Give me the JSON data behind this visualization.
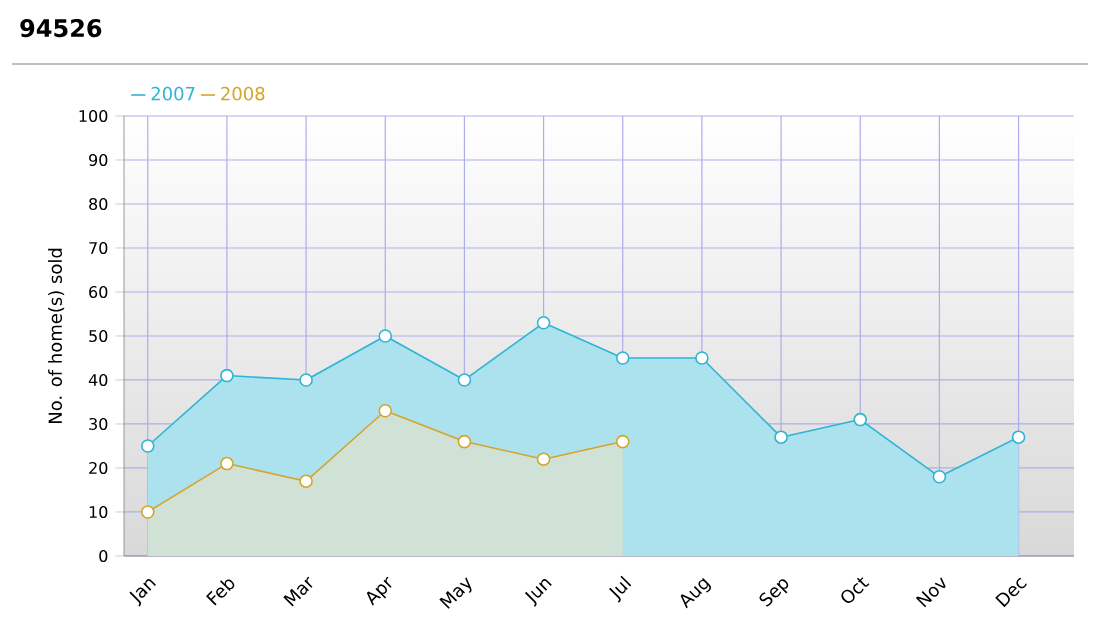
{
  "chart_data": {
    "type": "area",
    "title": "94526",
    "ylabel": "No. of home(s) sold",
    "categories": [
      "Jan",
      "Feb",
      "Mar",
      "Apr",
      "May",
      "Jun",
      "Jul",
      "Aug",
      "Sep",
      "Oct",
      "Nov",
      "Dec"
    ],
    "series": [
      {
        "name": "2007",
        "color": "#2fb4d4",
        "values": [
          25,
          41,
          40,
          50,
          40,
          53,
          45,
          45,
          27,
          31,
          18,
          27
        ]
      },
      {
        "name": "2008",
        "color": "#d4a52a",
        "values": [
          10,
          21,
          17,
          33,
          26,
          22,
          26,
          null,
          null,
          null,
          null,
          null
        ]
      }
    ],
    "ylim": [
      0,
      100
    ],
    "yticks": [
      0,
      10,
      20,
      30,
      40,
      50,
      60,
      70,
      80,
      90,
      100
    ],
    "grid": true,
    "legend": "top left",
    "marker": "circle"
  }
}
